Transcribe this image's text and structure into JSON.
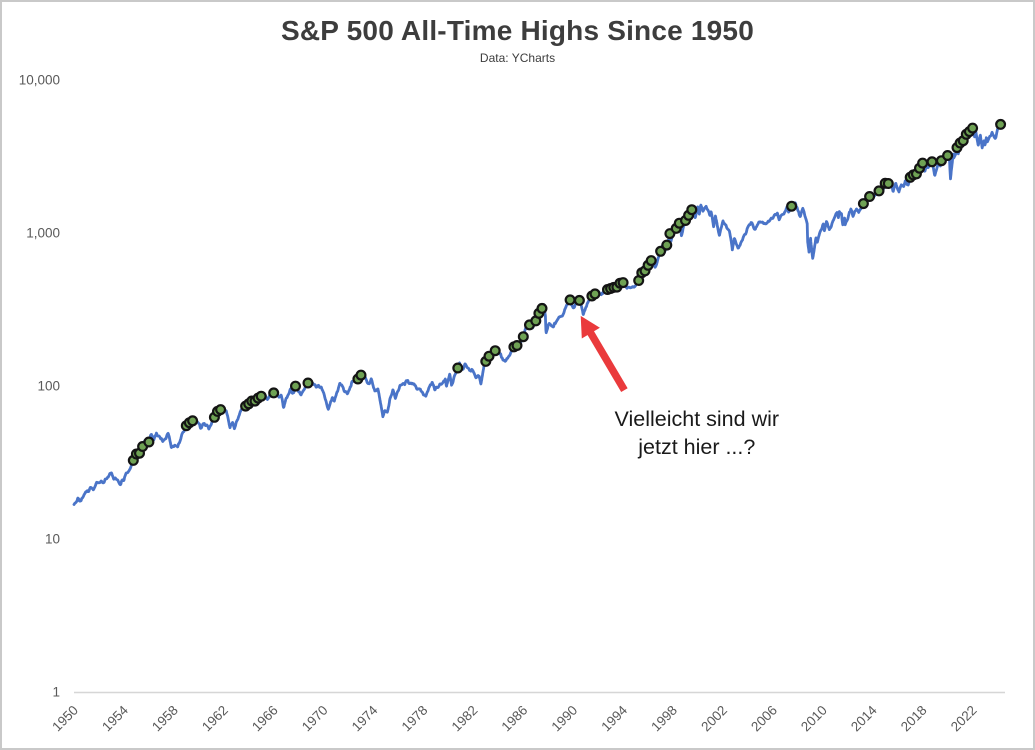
{
  "page": {
    "title": "S&P 500 All-Time Highs Since 1950",
    "subtitle": "Data: YCharts"
  },
  "colors": {
    "line": "#4a74c8",
    "dot_fill": "#6fa254",
    "dot_border": "#141414",
    "arrow": "#ea3a3c",
    "axis_line": "#d6d6d6",
    "tick_text": "#595959",
    "title_text": "#3d3d3d",
    "annotation_text": "#1a1a1a",
    "canvas_border": "#c9c9c9"
  },
  "chart_data": {
    "type": "line",
    "title": "S&P 500 All-Time Highs Since 1950",
    "subtitle": "Data: YCharts",
    "grid": false,
    "legend": false,
    "x_axis": {
      "range": [
        1950,
        2024.6
      ],
      "ticks": [
        1950,
        1954,
        1958,
        1962,
        1966,
        1970,
        1974,
        1978,
        1982,
        1986,
        1990,
        1994,
        1998,
        2002,
        2006,
        2010,
        2014,
        2018,
        2022
      ]
    },
    "y_axis": {
      "scale": "log",
      "range": [
        1,
        10000
      ],
      "ticks": [
        {
          "label": "10,000",
          "value": 10000
        },
        {
          "label": "1,000",
          "value": 1000
        },
        {
          "label": "100",
          "value": 100
        },
        {
          "label": "10",
          "value": 10
        },
        {
          "label": "1",
          "value": 1
        }
      ]
    },
    "series": [
      {
        "name": "S&P 500 price (log scale)",
        "color": "#4a74c8",
        "points": [
          [
            1950.0,
            16.9
          ],
          [
            1950.3,
            18.1
          ],
          [
            1950.5,
            17.4
          ],
          [
            1950.95,
            20.4
          ],
          [
            1951.4,
            21.7
          ],
          [
            1951.55,
            20.9
          ],
          [
            1951.8,
            23.0
          ],
          [
            1952.15,
            23.9
          ],
          [
            1952.4,
            23.3
          ],
          [
            1952.95,
            26.6
          ],
          [
            1953.2,
            25.3
          ],
          [
            1953.7,
            22.7
          ],
          [
            1954.0,
            24.8
          ],
          [
            1954.5,
            29.2
          ],
          [
            1954.95,
            35.9
          ],
          [
            1955.2,
            36.6
          ],
          [
            1955.35,
            37.9
          ],
          [
            1955.72,
            43.9
          ],
          [
            1955.8,
            40.8
          ],
          [
            1956.0,
            43.8
          ],
          [
            1956.2,
            48.0
          ],
          [
            1956.4,
            44.1
          ],
          [
            1956.6,
            49.7
          ],
          [
            1957.1,
            43.0
          ],
          [
            1957.55,
            49.1
          ],
          [
            1957.8,
            39.0
          ],
          [
            1958.1,
            41.1
          ],
          [
            1958.3,
            40.3
          ],
          [
            1959.0,
            55.4
          ],
          [
            1959.6,
            60.7
          ],
          [
            1960.2,
            53.4
          ],
          [
            1960.45,
            57.3
          ],
          [
            1960.8,
            52.3
          ],
          [
            1961.4,
            66.7
          ],
          [
            1961.95,
            72.6
          ],
          [
            1962.2,
            69.6
          ],
          [
            1962.5,
            52.3
          ],
          [
            1962.7,
            59.1
          ],
          [
            1962.85,
            53.5
          ],
          [
            1963.4,
            70.0
          ],
          [
            1964.0,
            77.0
          ],
          [
            1964.9,
            84.8
          ],
          [
            1965.2,
            87.5
          ],
          [
            1965.5,
            81.6
          ],
          [
            1966.1,
            94.1
          ],
          [
            1966.4,
            86.1
          ],
          [
            1966.6,
            87.1
          ],
          [
            1966.78,
            73.2
          ],
          [
            1967.35,
            94.3
          ],
          [
            1967.6,
            90.9
          ],
          [
            1967.75,
            97.6
          ],
          [
            1968.2,
            87.7
          ],
          [
            1968.92,
            108.4
          ],
          [
            1969.4,
            97.0
          ],
          [
            1969.6,
            102.1
          ],
          [
            1970.0,
            89.5
          ],
          [
            1970.38,
            69.3
          ],
          [
            1970.7,
            84.3
          ],
          [
            1970.85,
            80.9
          ],
          [
            1971.3,
            104.8
          ],
          [
            1971.65,
            93.5
          ],
          [
            1971.9,
            90.2
          ],
          [
            1972.3,
            108.0
          ],
          [
            1972.55,
            106.8
          ],
          [
            1973.02,
            120.2
          ],
          [
            1973.65,
            103.8
          ],
          [
            1973.82,
            111.0
          ],
          [
            1974.1,
            92.5
          ],
          [
            1974.35,
            98.0
          ],
          [
            1974.75,
            62.3
          ],
          [
            1974.9,
            70.0
          ],
          [
            1975.1,
            68.6
          ],
          [
            1975.55,
            95.6
          ],
          [
            1975.75,
            83.9
          ],
          [
            1976.1,
            100.9
          ],
          [
            1976.75,
            107.8
          ],
          [
            1977.4,
            98.4
          ],
          [
            1977.8,
            92.3
          ],
          [
            1978.2,
            86.9
          ],
          [
            1978.7,
            107.0
          ],
          [
            1978.9,
            92.5
          ],
          [
            1979.3,
            102.0
          ],
          [
            1979.75,
            111.3
          ],
          [
            1979.85,
            99.9
          ],
          [
            1980.1,
            118.4
          ],
          [
            1980.25,
            102.1
          ],
          [
            1980.9,
            140.5
          ],
          [
            1981.05,
            129.5
          ],
          [
            1981.35,
            136.6
          ],
          [
            1981.75,
            122.8
          ],
          [
            1981.95,
            126.3
          ],
          [
            1982.2,
            111.0
          ],
          [
            1982.45,
            116.8
          ],
          [
            1982.6,
            102.4
          ],
          [
            1982.9,
            143.0
          ],
          [
            1983.1,
            145.3
          ],
          [
            1983.45,
            170.0
          ],
          [
            1983.6,
            163.0
          ],
          [
            1983.8,
            172.6
          ],
          [
            1984.2,
            157.0
          ],
          [
            1984.55,
            147.8
          ],
          [
            1985.0,
            167.2
          ],
          [
            1985.25,
            180.7
          ],
          [
            1985.55,
            188.0
          ],
          [
            1985.75,
            182.1
          ],
          [
            1986.2,
            238.9
          ],
          [
            1986.4,
            237.1
          ],
          [
            1986.55,
            252.0
          ],
          [
            1986.75,
            236.1
          ],
          [
            1987.2,
            293.5
          ],
          [
            1987.65,
            336.8
          ],
          [
            1987.78,
            282.7
          ],
          [
            1987.82,
            224.8
          ],
          [
            1988.0,
            247.1
          ],
          [
            1988.1,
            257.1
          ],
          [
            1988.4,
            243.4
          ],
          [
            1988.85,
            277.7
          ],
          [
            1989.15,
            294.0
          ],
          [
            1989.4,
            320.5
          ],
          [
            1989.75,
            359.8
          ],
          [
            1989.85,
            340.4
          ],
          [
            1990.1,
            322.0
          ],
          [
            1990.5,
            368.9
          ],
          [
            1990.8,
            295.5
          ],
          [
            1991.1,
            343.9
          ],
          [
            1991.3,
            375.2
          ],
          [
            1991.95,
            417.1
          ],
          [
            1992.3,
            403.5
          ],
          [
            1992.95,
            435.7
          ],
          [
            1993.5,
            450.2
          ],
          [
            1994.1,
            482.0
          ],
          [
            1994.3,
            438.9
          ],
          [
            1994.5,
            444.3
          ],
          [
            1995.0,
            459.3
          ],
          [
            1995.5,
            539.0
          ],
          [
            1996.0,
            615.9
          ],
          [
            1996.45,
            668.0
          ],
          [
            1996.55,
            605.0
          ],
          [
            1997.0,
            740.7
          ],
          [
            1997.15,
            816.3
          ],
          [
            1997.3,
            733.5
          ],
          [
            1997.75,
            983.1
          ],
          [
            1997.82,
            877.0
          ],
          [
            1998.3,
            1111.8
          ],
          [
            1998.55,
            1186.8
          ],
          [
            1998.67,
            957.3
          ],
          [
            1998.95,
            1190.0
          ],
          [
            1999.35,
            1362.0
          ],
          [
            1999.5,
            1418.8
          ],
          [
            1999.78,
            1247.4
          ],
          [
            1999.98,
            1469.3
          ],
          [
            2000.1,
            1333.4
          ],
          [
            2000.22,
            1527.5
          ],
          [
            2000.4,
            1356.6
          ],
          [
            2000.65,
            1520.8
          ],
          [
            2000.95,
            1264.7
          ],
          [
            2001.05,
            1373.7
          ],
          [
            2001.25,
            1103.3
          ],
          [
            2001.4,
            1312.8
          ],
          [
            2001.72,
            965.8
          ],
          [
            2002.0,
            1172.5
          ],
          [
            2002.35,
            1076.9
          ],
          [
            2002.55,
            989.1
          ],
          [
            2002.75,
            776.8
          ],
          [
            2002.9,
            936.3
          ],
          [
            2003.2,
            800.7
          ],
          [
            2003.95,
            1058.2
          ],
          [
            2004.25,
            1150.6
          ],
          [
            2004.6,
            1063.2
          ],
          [
            2004.95,
            1211.9
          ],
          [
            2005.3,
            1137.5
          ],
          [
            2005.95,
            1272.7
          ],
          [
            2006.35,
            1325.8
          ],
          [
            2006.5,
            1223.7
          ],
          [
            2007.15,
            1459.7
          ],
          [
            2007.25,
            1374.1
          ],
          [
            2007.55,
            1553.1
          ],
          [
            2007.65,
            1406.7
          ],
          [
            2007.78,
            1565.2
          ],
          [
            2008.2,
            1273.4
          ],
          [
            2008.4,
            1426.6
          ],
          [
            2008.75,
            1164.7
          ],
          [
            2008.78,
            899.2
          ],
          [
            2008.9,
            752.4
          ],
          [
            2009.02,
            931.8
          ],
          [
            2009.19,
            676.5
          ],
          [
            2009.45,
            946.2
          ],
          [
            2009.55,
            879.1
          ],
          [
            2010.05,
            1150.2
          ],
          [
            2010.12,
            1056.7
          ],
          [
            2010.3,
            1217.3
          ],
          [
            2010.52,
            1022.6
          ],
          [
            2010.87,
            1225.8
          ],
          [
            2011.15,
            1343.0
          ],
          [
            2011.25,
            1256.9
          ],
          [
            2011.33,
            1363.6
          ],
          [
            2011.5,
            1320.0
          ],
          [
            2011.6,
            1119.5
          ],
          [
            2011.75,
            1218.9
          ],
          [
            2011.78,
            1099.2
          ],
          [
            2012.0,
            1257.6
          ],
          [
            2012.25,
            1419.0
          ],
          [
            2012.42,
            1278.0
          ],
          [
            2012.7,
            1465.8
          ],
          [
            2012.87,
            1353.3
          ],
          [
            2013.0,
            1426.2
          ],
          [
            2013.45,
            1669.2
          ],
          [
            2013.5,
            1573.1
          ],
          [
            2013.99,
            1848.4
          ],
          [
            2014.08,
            1741.9
          ],
          [
            2014.72,
            2011.4
          ],
          [
            2014.8,
            1862.5
          ],
          [
            2014.98,
            2090.6
          ],
          [
            2015.38,
            2130.8
          ],
          [
            2015.64,
            1867.6
          ],
          [
            2015.85,
            2109.8
          ],
          [
            2016.1,
            1829.1
          ],
          [
            2016.3,
            2102.4
          ],
          [
            2016.48,
            2000.5
          ],
          [
            2016.6,
            2190.2
          ],
          [
            2016.85,
            2085.2
          ],
          [
            2017.0,
            2262.0
          ],
          [
            2017.5,
            2446.0
          ],
          [
            2018.07,
            2872.9
          ],
          [
            2018.11,
            2581.0
          ],
          [
            2018.45,
            2705.3
          ],
          [
            2018.75,
            2930.8
          ],
          [
            2018.97,
            2351.1
          ],
          [
            2019.33,
            2945.8
          ],
          [
            2019.42,
            2744.5
          ],
          [
            2019.5,
            3025.9
          ],
          [
            2019.6,
            2840.6
          ],
          [
            2020.12,
            3386.2
          ],
          [
            2020.23,
            2237.4
          ],
          [
            2020.45,
            3232.4
          ],
          [
            2020.5,
            3009.1
          ],
          [
            2020.75,
            3580.8
          ],
          [
            2020.85,
            3236.9
          ],
          [
            2021.0,
            3756.1
          ],
          [
            2021.35,
            4181.2
          ],
          [
            2021.6,
            4420.0
          ],
          [
            2021.7,
            4536.9
          ],
          [
            2022.01,
            4796.6
          ],
          [
            2022.18,
            4170.7
          ],
          [
            2022.25,
            4631.6
          ],
          [
            2022.45,
            3666.8
          ],
          [
            2022.62,
            4305.2
          ],
          [
            2022.77,
            3577.0
          ],
          [
            2022.92,
            4080.1
          ],
          [
            2023.0,
            3839.5
          ],
          [
            2023.1,
            4179.8
          ],
          [
            2023.19,
            3855.8
          ],
          [
            2023.56,
            4588.9
          ],
          [
            2023.82,
            4117.4
          ],
          [
            2024.0,
            4769.8
          ],
          [
            2024.2,
            5104.0
          ],
          [
            2024.4,
            5123.0
          ]
        ]
      }
    ],
    "all_time_high_markers": {
      "description": "green dots at points where price makes a new all-time high",
      "prior_peak_baseline": 31.86,
      "sample_interval_years": 0.25,
      "color": "#6fa254",
      "border": "#141414"
    },
    "annotation": {
      "lines": [
        "Vielleicht sind wir",
        "jetzt hier ...?"
      ],
      "arrow_tip": {
        "year": 1990.6,
        "value": 287
      },
      "arrow_tail": {
        "year": 1994.1,
        "value": 94
      },
      "text_center": {
        "year": 1999.9,
        "value": 49
      }
    }
  }
}
